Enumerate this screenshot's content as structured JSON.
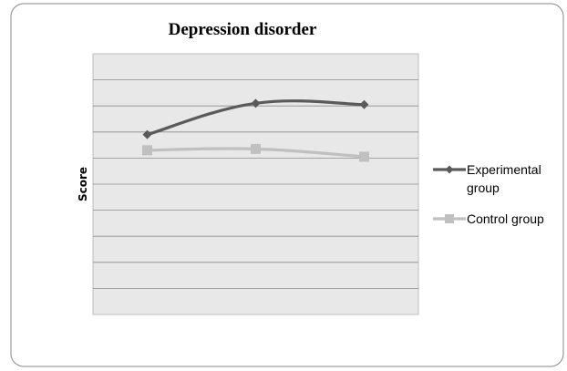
{
  "chart_data": {
    "type": "line",
    "title": "Depression disorder",
    "xlabel": "",
    "ylabel": "Score",
    "categories": [
      "",
      "",
      ""
    ],
    "ylim": [
      0,
      10
    ],
    "grid": true,
    "legend_position": "right",
    "series": [
      {
        "name_lines": [
          "Experimental",
          "group"
        ],
        "values": [
          6.9,
          8.1,
          8.05
        ],
        "color": "#5a5a5a",
        "marker": "diamond"
      },
      {
        "name_lines": [
          "Control group"
        ],
        "values": [
          6.3,
          6.35,
          6.05
        ],
        "color": "#c0c0c0",
        "marker": "square"
      }
    ]
  }
}
